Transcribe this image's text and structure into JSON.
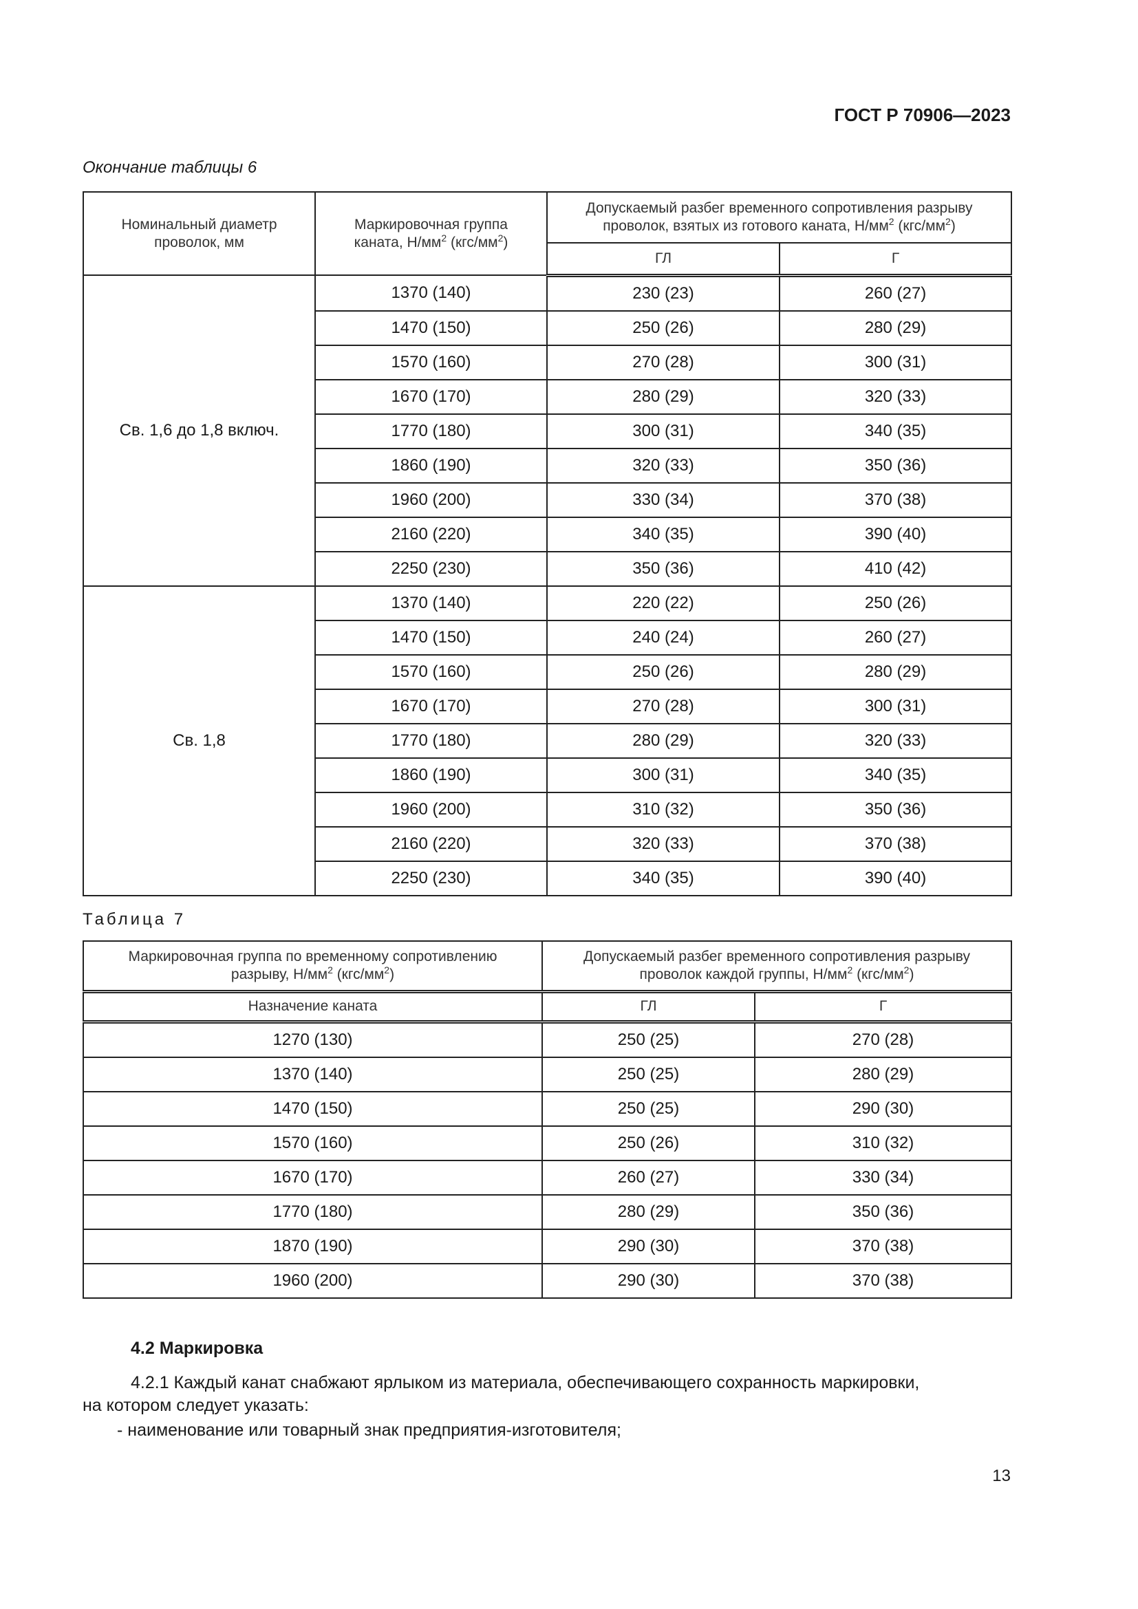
{
  "header": {
    "doc_code": "ГОСТ Р 70906—2023"
  },
  "table6": {
    "caption": "Окончание таблицы 6",
    "col1": "Номинальный диаметр проволок, мм",
    "col2_a": "Маркировочная группа каната, Н/мм",
    "col2_b": " (кгс/мм",
    "col2_c": ")",
    "col3_a": "Допускаемый разбег временного сопротивления разрыву проволок, взятых из готового каната, Н/мм",
    "col3_b": " (кгс/мм",
    "col3_c": ")",
    "sub_gl": "ГЛ",
    "sub_g": "Г",
    "groups": [
      {
        "diameter": "Св. 1,6 до 1,8 включ.",
        "rows": [
          [
            "1370 (140)",
            "230 (23)",
            "260 (27)"
          ],
          [
            "1470 (150)",
            "250 (26)",
            "280 (29)"
          ],
          [
            "1570 (160)",
            "270 (28)",
            "300 (31)"
          ],
          [
            "1670 (170)",
            "280 (29)",
            "320 (33)"
          ],
          [
            "1770 (180)",
            "300 (31)",
            "340 (35)"
          ],
          [
            "1860 (190)",
            "320 (33)",
            "350 (36)"
          ],
          [
            "1960 (200)",
            "330 (34)",
            "370 (38)"
          ],
          [
            "2160 (220)",
            "340 (35)",
            "390 (40)"
          ],
          [
            "2250 (230)",
            "350 (36)",
            "410 (42)"
          ]
        ]
      },
      {
        "diameter": "Св. 1,8",
        "rows": [
          [
            "1370 (140)",
            "220 (22)",
            "250 (26)"
          ],
          [
            "1470 (150)",
            "240 (24)",
            "260 (27)"
          ],
          [
            "1570 (160)",
            "250 (26)",
            "280 (29)"
          ],
          [
            "1670 (170)",
            "270 (28)",
            "300 (31)"
          ],
          [
            "1770 (180)",
            "280 (29)",
            "320 (33)"
          ],
          [
            "1860 (190)",
            "300 (31)",
            "340 (35)"
          ],
          [
            "1960 (200)",
            "310 (32)",
            "350 (36)"
          ],
          [
            "2160 (220)",
            "320 (33)",
            "370 (38)"
          ],
          [
            "2250 (230)",
            "340 (35)",
            "390 (40)"
          ]
        ]
      }
    ]
  },
  "table7": {
    "caption": "Таблица 7",
    "col1_a": "Маркировочная группа по временному сопротивлению разрыву, Н/мм",
    "col1_b": " (кгс/мм",
    "col1_c": ")",
    "col2_a": "Допускаемый разбег временного сопротивления разрыву проволок каждой группы, Н/мм",
    "col2_b": " (кгс/мм",
    "col2_c": ")",
    "sub_purpose": "Назначение каната",
    "sub_gl": "ГЛ",
    "sub_g": "Г",
    "rows": [
      [
        "1270 (130)",
        "250 (25)",
        "270 (28)"
      ],
      [
        "1370 (140)",
        "250 (25)",
        "280 (29)"
      ],
      [
        "1470 (150)",
        "250 (25)",
        "290 (30)"
      ],
      [
        "1570 (160)",
        "250 (26)",
        "310 (32)"
      ],
      [
        "1670 (170)",
        "260 (27)",
        "330 (34)"
      ],
      [
        "1770 (180)",
        "280 (29)",
        "350 (36)"
      ],
      [
        "1870 (190)",
        "290 (30)",
        "370 (38)"
      ],
      [
        "1960 (200)",
        "290 (30)",
        "370 (38)"
      ]
    ]
  },
  "section": {
    "heading": "4.2 Маркировка",
    "p1": "4.2.1 Каждый канат снабжают ярлыком из материала, обеспечивающего сохранность маркировки,",
    "p2": "на котором следует указать:",
    "p3": "-  наименование или товарный знак предприятия-изготовителя;"
  },
  "page_number": "13",
  "sup": "2"
}
